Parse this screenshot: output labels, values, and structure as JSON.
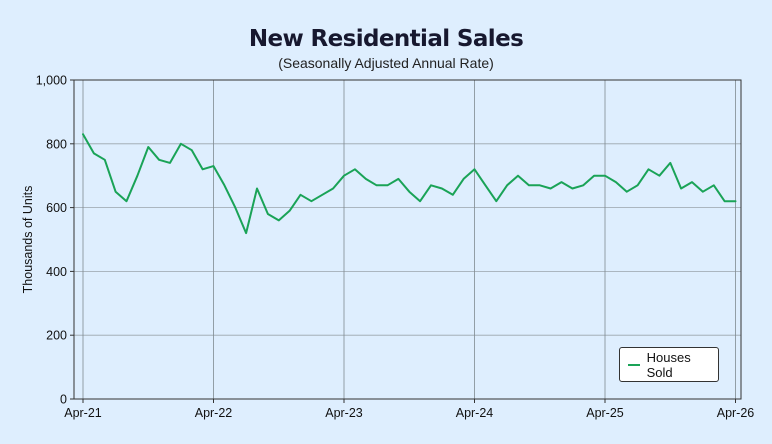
{
  "chart_data": {
    "type": "line",
    "title": "New Residential Sales",
    "subtitle": "(Seasonally Adjusted Annual Rate)",
    "xlabel": "",
    "ylabel": "Thousands of Units",
    "ylim": [
      0,
      1000
    ],
    "y_ticks": [
      "0",
      "200",
      "400",
      "600",
      "800",
      "1,000"
    ],
    "x_ticks": [
      "Apr-21",
      "Apr-22",
      "Apr-23",
      "Apr-24",
      "Apr-25",
      "Apr-26"
    ],
    "grid": true,
    "legend_position": "bottom-right",
    "color": "#1aa357",
    "series": [
      {
        "name": "Houses Sold",
        "x": [
          "2021-04",
          "2021-05",
          "2021-06",
          "2021-07",
          "2021-08",
          "2021-09",
          "2021-10",
          "2021-11",
          "2021-12",
          "2022-01",
          "2022-02",
          "2022-03",
          "2022-04",
          "2022-05",
          "2022-06",
          "2022-07",
          "2022-08",
          "2022-09",
          "2022-10",
          "2022-11",
          "2022-12",
          "2023-01",
          "2023-02",
          "2023-03",
          "2023-04",
          "2023-05",
          "2023-06",
          "2023-07",
          "2023-08",
          "2023-09",
          "2023-10",
          "2023-11",
          "2023-12",
          "2024-01",
          "2024-02",
          "2024-03",
          "2024-04",
          "2024-05",
          "2024-06",
          "2024-07",
          "2024-08",
          "2024-09",
          "2024-10",
          "2024-11",
          "2024-12",
          "2025-01",
          "2025-02",
          "2025-03",
          "2025-04",
          "2025-05",
          "2025-06",
          "2025-07",
          "2025-08",
          "2025-09",
          "2025-10",
          "2025-11",
          "2025-12",
          "2026-01",
          "2026-02",
          "2026-03",
          "2026-04"
        ],
        "values": [
          830,
          770,
          750,
          650,
          620,
          700,
          790,
          750,
          740,
          800,
          780,
          720,
          730,
          670,
          600,
          520,
          660,
          580,
          560,
          590,
          640,
          620,
          640,
          660,
          700,
          720,
          690,
          670,
          670,
          690,
          650,
          620,
          670,
          660,
          640,
          690,
          720,
          670,
          620,
          670,
          700,
          670,
          670,
          660,
          680,
          660,
          670,
          700,
          700,
          680,
          650,
          670,
          720,
          700,
          740,
          660,
          680,
          650,
          670,
          620,
          620
        ]
      }
    ]
  }
}
